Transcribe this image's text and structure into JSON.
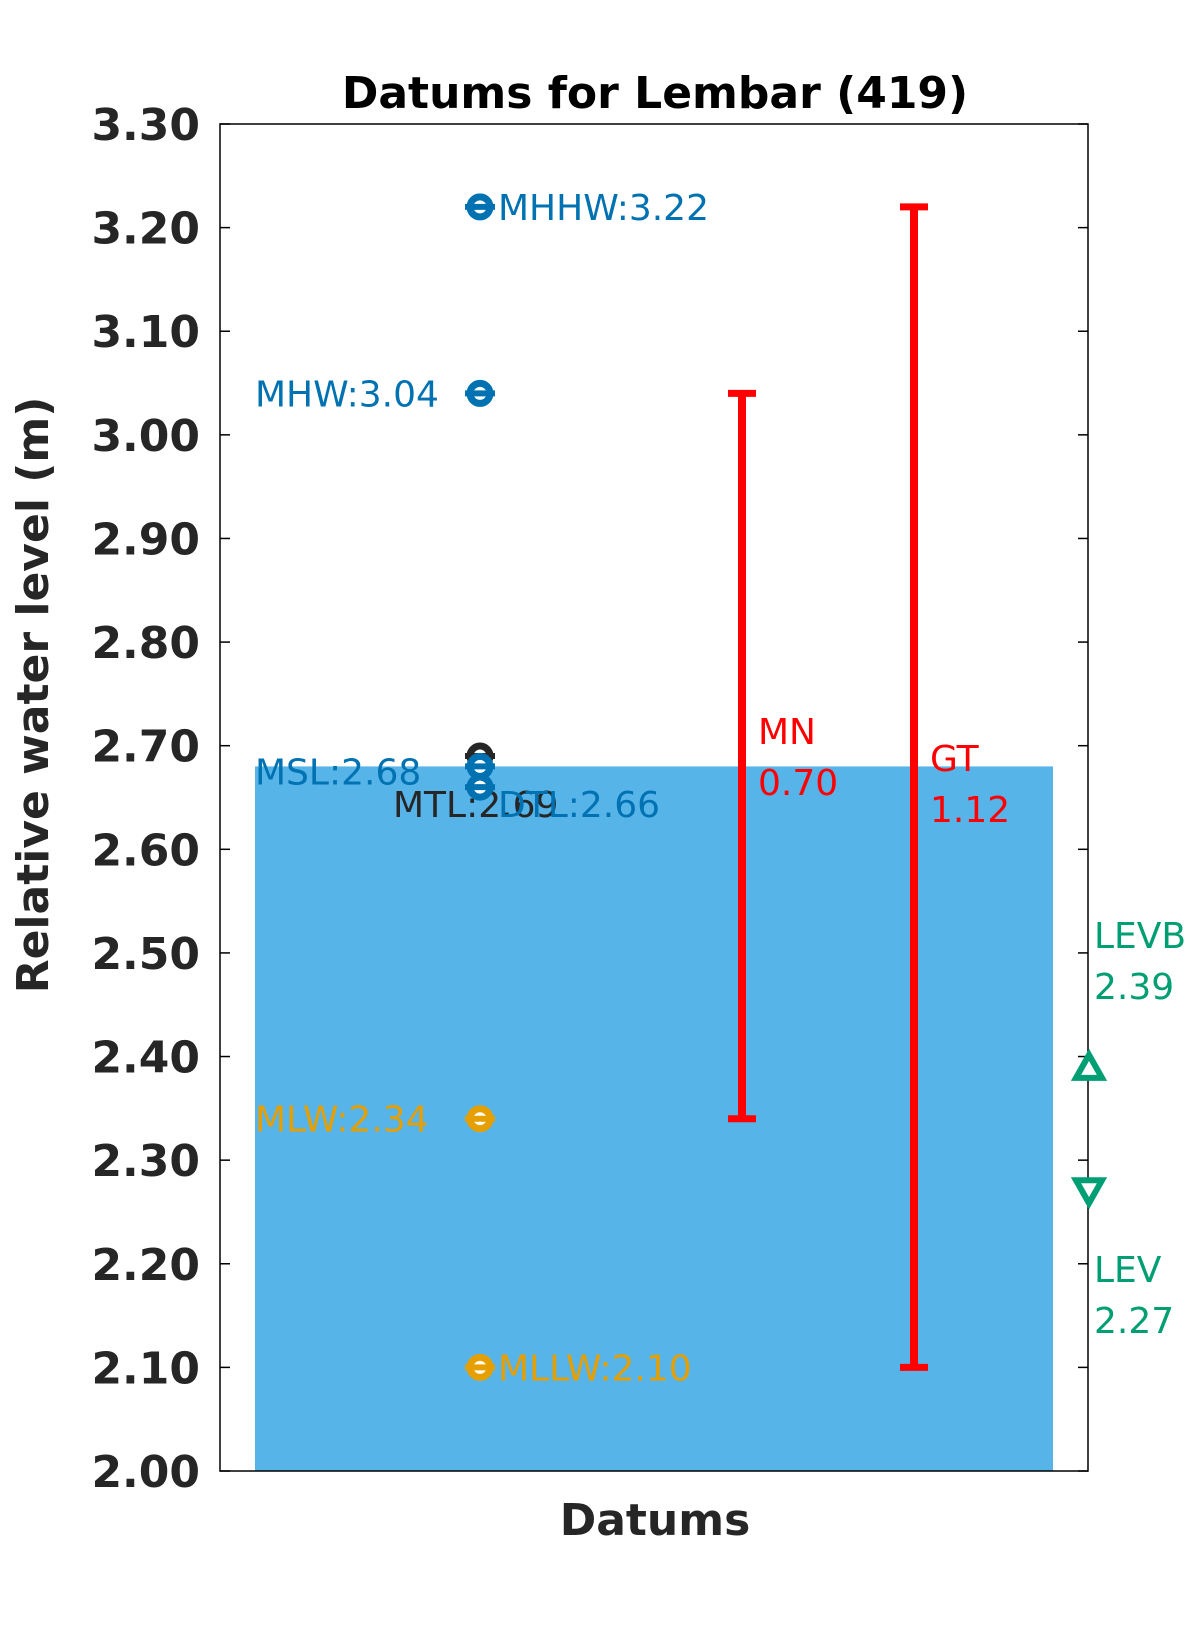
{
  "chart_data": {
    "type": "scatter",
    "title": "Datums for Lembar (419)",
    "xlabel": "Datums",
    "ylabel": "Relative water level (m)",
    "ylim": [
      2.0,
      3.3
    ],
    "yticks": [
      "2.00",
      "2.10",
      "2.20",
      "2.30",
      "2.40",
      "2.50",
      "2.60",
      "2.70",
      "2.80",
      "2.90",
      "3.00",
      "3.10",
      "3.20",
      "3.30"
    ],
    "grid": false,
    "colors": {
      "blue": "#0072b2",
      "orange": "#e69f00",
      "dark": "#262626",
      "red": "#ff0000",
      "green": "#009e73",
      "fill": "#56b4e9"
    },
    "msl_fill": {
      "from": 2.0,
      "to": 2.68,
      "color": "#56b4e9"
    },
    "points": [
      {
        "name": "MHHW",
        "value": 3.22,
        "label": "MHHW:3.22",
        "color": "#0072b2",
        "side": "right"
      },
      {
        "name": "MHW",
        "value": 3.04,
        "label": "MHW:3.04",
        "color": "#0072b2",
        "side": "left"
      },
      {
        "name": "MTL",
        "value": 2.69,
        "label": "MTL:2.69",
        "color": "#262626",
        "side": "below"
      },
      {
        "name": "MSL",
        "value": 2.68,
        "label": "MSL:2.68",
        "color": "#0072b2",
        "side": "left"
      },
      {
        "name": "DTL",
        "value": 2.66,
        "label": "DTL:2.66",
        "color": "#0072b2",
        "side": "right"
      },
      {
        "name": "MLW",
        "value": 2.34,
        "label": "MLW:2.34",
        "color": "#e69f00",
        "side": "left"
      },
      {
        "name": "MLLW",
        "value": 2.1,
        "label": "MLLW:2.10",
        "color": "#e69f00",
        "side": "right"
      }
    ],
    "ranges": [
      {
        "name": "MN",
        "low": 2.34,
        "high": 3.04,
        "label": "MN",
        "value_label": "0.70",
        "color": "#ff0000"
      },
      {
        "name": "GT",
        "low": 2.1,
        "high": 3.22,
        "label": "GT",
        "value_label": "1.12",
        "color": "#ff0000"
      }
    ],
    "extremes": [
      {
        "name": "LEVB",
        "value": 2.39,
        "label": "LEVB",
        "value_label": "2.39",
        "marker": "triangle-up",
        "color": "#009e73"
      },
      {
        "name": "LEV",
        "value": 2.27,
        "label": "LEV",
        "value_label": "2.27",
        "marker": "triangle-down",
        "color": "#009e73"
      }
    ]
  }
}
